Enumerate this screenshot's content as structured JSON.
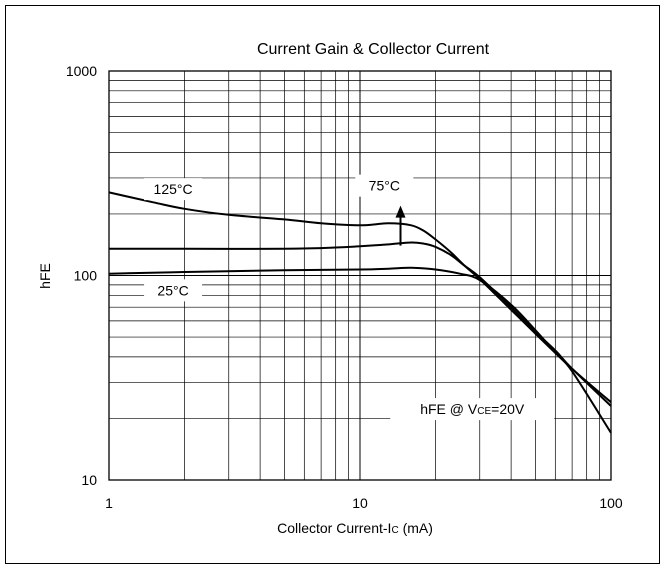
{
  "chart_data": {
    "type": "line",
    "title": "Current Gain & Collector Current",
    "xlabel_main": "Collector Current-I",
    "xlabel_sub": "C",
    "xlabel_unit": " (mA)",
    "ylabel": "hFE",
    "x_scale": "log",
    "y_scale": "log",
    "xlim": [
      1,
      100
    ],
    "ylim": [
      10,
      1000
    ],
    "x_tick_labels": [
      "1",
      "10",
      "100"
    ],
    "y_tick_labels": [
      "10",
      "100",
      "1000"
    ],
    "grid": true,
    "condition": {
      "prefix": "hFE @ V",
      "sub": "CE",
      "suffix": "=20V"
    },
    "series": [
      {
        "name": "125°C",
        "temp": "125",
        "unit": "°C",
        "x": [
          1,
          1.5,
          2,
          3,
          5,
          7,
          10,
          13,
          16,
          18,
          20,
          23,
          26,
          30,
          40,
          50,
          70,
          100
        ],
        "y": [
          255,
          228,
          212,
          198,
          188,
          180,
          176,
          180,
          176,
          165,
          150,
          130,
          112,
          96,
          68,
          52,
          35,
          24
        ]
      },
      {
        "name": "75°C",
        "temp": "75",
        "unit": "°C",
        "x": [
          1,
          2,
          5,
          8,
          10,
          13,
          16,
          18,
          20,
          23,
          26,
          30,
          40,
          50,
          60,
          70,
          100
        ],
        "y": [
          135,
          135,
          135,
          137,
          139,
          142,
          145,
          143,
          138,
          126,
          112,
          98,
          70,
          53,
          43,
          35,
          23
        ]
      },
      {
        "name": "25°C",
        "temp": "25",
        "unit": "°C",
        "x": [
          1,
          2,
          5,
          10,
          13,
          16,
          20,
          25,
          30,
          40,
          50,
          60,
          70,
          100
        ],
        "y": [
          102,
          104,
          106,
          107,
          108,
          109,
          107,
          102,
          95,
          72,
          54,
          42,
          34,
          17
        ]
      }
    ],
    "annotations": [
      {
        "ref": "125°C",
        "label_x": 1.8,
        "label_y": 250
      },
      {
        "ref": "75°C",
        "label_x": 12.5,
        "label_y": 260,
        "arrow_x": 14.5,
        "arrow_from_y": 140,
        "arrow_to_y": 210
      },
      {
        "ref": "25°C",
        "label_x": 1.8,
        "label_y": 80
      }
    ]
  }
}
